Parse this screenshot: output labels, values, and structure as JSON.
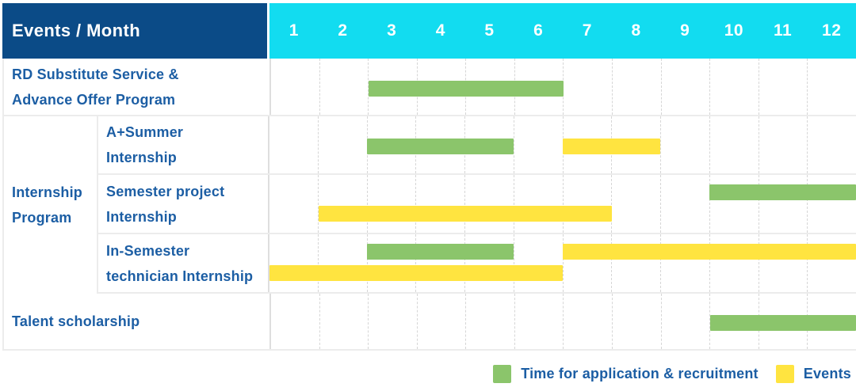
{
  "colors": {
    "header_bg": "#0B4B87",
    "month_header_bg": "#12DCF0",
    "bar_green": "#8BC56B",
    "bar_yellow": "#FFE440",
    "label_text": "#1C5EA4",
    "header_text": "#FFFFFF"
  },
  "table": {
    "header": {
      "corner_label": "Events / Month"
    }
  },
  "legend": {
    "items": [
      {
        "id": "application",
        "label": "Time for application & recruitment",
        "color": "#8BC56B"
      },
      {
        "id": "events",
        "label": "Events",
        "color": "#FFE440"
      }
    ]
  },
  "chart_data": {
    "type": "gantt",
    "title": "Events / Month",
    "x": {
      "unit": "month",
      "ticks": [
        "1",
        "2",
        "3",
        "4",
        "5",
        "6",
        "7",
        "8",
        "9",
        "10",
        "11",
        "12"
      ],
      "range": [
        1,
        12
      ]
    },
    "legend": [
      {
        "name": "Time for application & recruitment",
        "color": "#8BC56B"
      },
      {
        "name": "Events",
        "color": "#FFE440"
      }
    ],
    "group_label_lines": [
      "Internship",
      "Program"
    ],
    "rows": [
      {
        "label": "RD Substitute Service & Advance Offer Program",
        "label_lines": [
          "RD Substitute Service &",
          "Advance Offer Program"
        ],
        "group": null,
        "bars": [
          {
            "series": "Time for application & recruitment",
            "color": "green",
            "start_month": 3,
            "end_month": 6,
            "lane": "mid"
          }
        ]
      },
      {
        "label": "A+Summer Internship",
        "label_lines": [
          "A+Summer",
          "Internship"
        ],
        "group": "Internship Program",
        "bars": [
          {
            "series": "Time for application & recruitment",
            "color": "green",
            "start_month": 3,
            "end_month": 5,
            "lane": "mid"
          },
          {
            "series": "Events",
            "color": "yellow",
            "start_month": 7,
            "end_month": 8,
            "lane": "mid"
          }
        ]
      },
      {
        "label": "Semester project Internship",
        "label_lines": [
          "Semester project",
          "Internship"
        ],
        "group": "Internship Program",
        "bars": [
          {
            "series": "Time for application & recruitment",
            "color": "green",
            "start_month": 10,
            "end_month": 12,
            "lane": "top"
          },
          {
            "series": "Events",
            "color": "yellow",
            "start_month": 2,
            "end_month": 7,
            "lane": "bottom"
          }
        ]
      },
      {
        "label": "In-Semester technician Internship",
        "label_lines": [
          "In-Semester",
          "technician Internship"
        ],
        "group": "Internship Program",
        "bars": [
          {
            "series": "Time for application & recruitment",
            "color": "green",
            "start_month": 3,
            "end_month": 5,
            "lane": "top"
          },
          {
            "series": "Events",
            "color": "yellow",
            "start_month": 7,
            "end_month": 12,
            "lane": "top"
          },
          {
            "series": "Events",
            "color": "yellow",
            "start_month": 1,
            "end_month": 6,
            "lane": "bottom"
          }
        ]
      },
      {
        "label": "Talent scholarship",
        "label_lines": [
          "Talent scholarship"
        ],
        "group": null,
        "bars": [
          {
            "series": "Time for application & recruitment",
            "color": "green",
            "start_month": 10,
            "end_month": 12,
            "lane": "mid"
          }
        ]
      }
    ]
  }
}
